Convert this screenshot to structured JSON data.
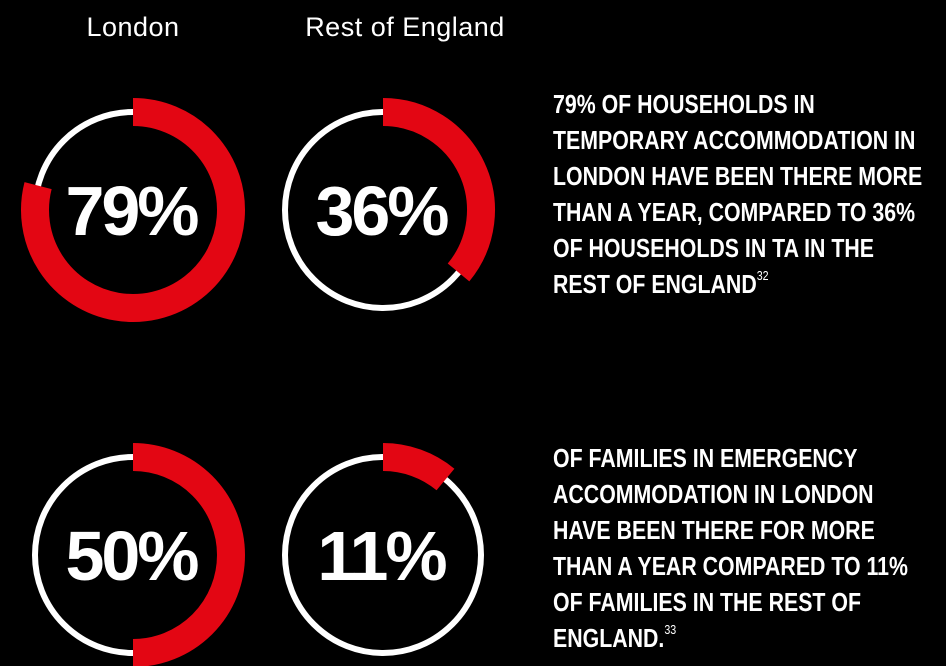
{
  "column_labels": [
    "London",
    "Rest of England"
  ],
  "chart_data": [
    {
      "type": "donut",
      "values": [
        79
      ],
      "value_labels": [
        "79%"
      ],
      "color": "#e30613",
      "track_color": "#ffffff"
    },
    {
      "type": "donut",
      "values": [
        36
      ],
      "value_labels": [
        "36%"
      ],
      "color": "#e30613",
      "track_color": "#ffffff"
    },
    {
      "type": "donut",
      "values": [
        50
      ],
      "value_labels": [
        "50%"
      ],
      "color": "#e30613",
      "track_color": "#ffffff"
    },
    {
      "type": "donut",
      "values": [
        11
      ],
      "value_labels": [
        "11%"
      ],
      "color": "#e30613",
      "track_color": "#ffffff"
    }
  ],
  "statements": [
    {
      "text": "79% OF HOUSEHOLDS IN TEMPORARY ACCOMMODATION IN LONDON HAVE BEEN THERE MORE THAN A YEAR, COMPARED TO 36% OF HOUSEHOLDS IN TA IN THE REST OF ENGLAND",
      "note": "32"
    },
    {
      "text": "OF FAMILIES IN EMERGENCY ACCOMMODATION IN LONDON HAVE BEEN THERE FOR MORE THAN A YEAR COMPARED TO 11% OF FAMILIES IN THE REST OF ENGLAND.",
      "note": "33"
    }
  ]
}
